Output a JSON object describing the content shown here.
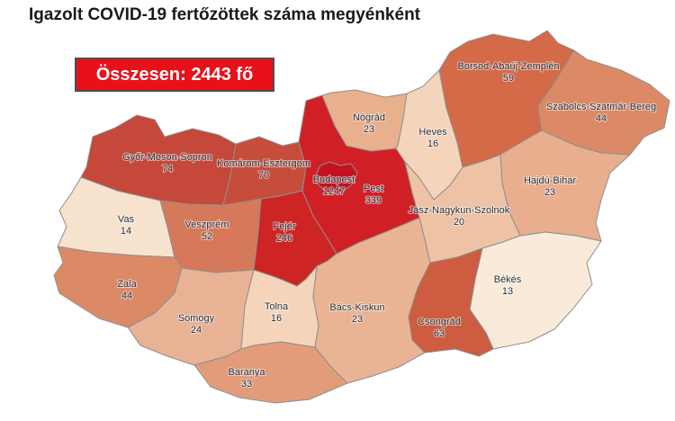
{
  "title": "Igazolt COVID-19 fertőzöttek száma megyénként",
  "summary_banner": {
    "label": "Összesen: 2443 fő",
    "background_color": "#e8111a",
    "text_color": "#ffffff",
    "border_color": "#4d4d4d"
  },
  "map": {
    "total": 2443,
    "border_color": "#8f8f8f",
    "label_color": "#2d2f38",
    "counties": [
      {
        "id": "gyor-moson-sopron",
        "name": "Győr-Moson-Sopron",
        "value": 74,
        "color": "#c5483a"
      },
      {
        "id": "komarom-esztergom",
        "name": "Komárom-Esztergom",
        "value": 70,
        "color": "#c74d3b"
      },
      {
        "id": "vas",
        "name": "Vas",
        "value": 14,
        "color": "#f7e2cd"
      },
      {
        "id": "veszprem",
        "name": "Veszprém",
        "value": 52,
        "color": "#d6795a"
      },
      {
        "id": "zala",
        "name": "Zala",
        "value": 44,
        "color": "#dc8a66"
      },
      {
        "id": "somogy",
        "name": "Somogy",
        "value": 24,
        "color": "#e9b294"
      },
      {
        "id": "tolna",
        "name": "Tolna",
        "value": 16,
        "color": "#f4d5bb"
      },
      {
        "id": "baranya",
        "name": "Baranya",
        "value": 33,
        "color": "#e29c79"
      },
      {
        "id": "fejer",
        "name": "Fejér",
        "value": 246,
        "color": "#ce2424"
      },
      {
        "id": "budapest",
        "name": "Budapest",
        "value": 1247,
        "color": "#c2131f"
      },
      {
        "id": "pest",
        "name": "Pest",
        "value": 339,
        "color": "#d02026"
      },
      {
        "id": "nograd",
        "name": "Nógrád",
        "value": 23,
        "color": "#e9b08e"
      },
      {
        "id": "heves",
        "name": "Heves",
        "value": 16,
        "color": "#f4d5bb"
      },
      {
        "id": "borsod-abauj-zemplen",
        "name": "Borsod-Abaúj-Zemplén",
        "value": 59,
        "color": "#d46a48"
      },
      {
        "id": "szabolcs-szatmar-bereg",
        "name": "Szabolcs-Szatmár-Bereg",
        "value": 44,
        "color": "#dc8a66"
      },
      {
        "id": "hajdu-bihar",
        "name": "Hajdú-Bihar",
        "value": 23,
        "color": "#e8ae8d"
      },
      {
        "id": "jasz-nagykun-szolnok",
        "name": "Jász-Nagykun-Szolnok",
        "value": 20,
        "color": "#eec2a4"
      },
      {
        "id": "bekes",
        "name": "Békés",
        "value": 13,
        "color": "#f9ead9"
      },
      {
        "id": "csongrad",
        "name": "Csongrád",
        "value": 63,
        "color": "#cd5c40"
      },
      {
        "id": "bacs-kiskun",
        "name": "Bács-Kiskun",
        "value": 23,
        "color": "#eab494"
      }
    ]
  },
  "chart_data": {
    "type": "heatmap",
    "subtype": "choropleth-map-hungary-counties",
    "title": "Igazolt COVID-19 fertőzöttek száma megyénként",
    "total_label": "Összesen: 2443 fő",
    "total": 2443,
    "legend_position": "none",
    "categories": [
      "Győr-Moson-Sopron",
      "Komárom-Esztergom",
      "Vas",
      "Veszprém",
      "Zala",
      "Somogy",
      "Tolna",
      "Baranya",
      "Fejér",
      "Budapest",
      "Pest",
      "Nógrád",
      "Heves",
      "Borsod-Abaúj-Zemplén",
      "Szabolcs-Szatmár-Bereg",
      "Hajdú-Bihar",
      "Jász-Nagykun-Szolnok",
      "Békés",
      "Csongrád",
      "Bács-Kiskun"
    ],
    "values": [
      74,
      70,
      14,
      52,
      44,
      24,
      16,
      33,
      246,
      1247,
      339,
      23,
      16,
      59,
      44,
      23,
      20,
      13,
      63,
      23
    ],
    "color_scale": "white-to-red by case count"
  }
}
